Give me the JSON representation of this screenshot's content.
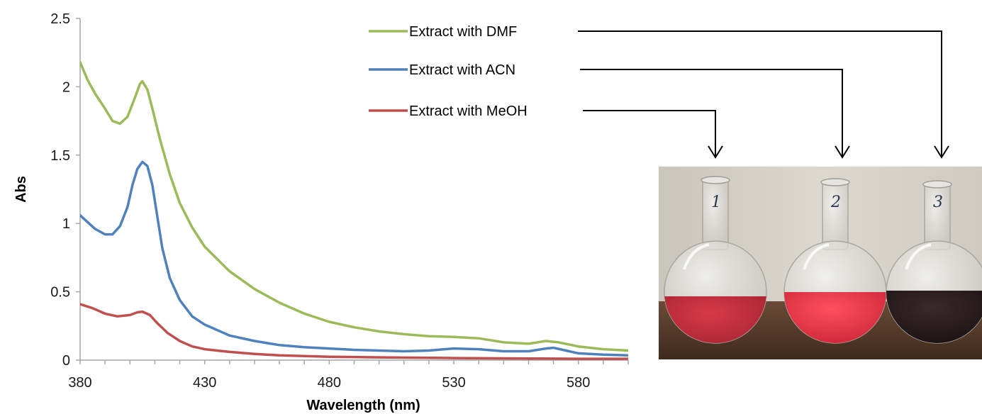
{
  "chart_data": {
    "type": "line",
    "xlabel": "Wavelength (nm)",
    "ylabel": "Abs",
    "xlim": [
      380,
      600
    ],
    "ylim": [
      0,
      2.5
    ],
    "x_ticks": [
      "380",
      "430",
      "480",
      "530",
      "580"
    ],
    "y_ticks": [
      "0",
      "0.5",
      "1",
      "1.5",
      "2",
      "2.5"
    ],
    "grid": false,
    "legend_position": "top-center",
    "series": [
      {
        "name": "Extract with DMF",
        "color": "#9bbb59",
        "points": [
          [
            380,
            2.18
          ],
          [
            383,
            2.05
          ],
          [
            386,
            1.95
          ],
          [
            390,
            1.84
          ],
          [
            393,
            1.75
          ],
          [
            396,
            1.73
          ],
          [
            399,
            1.78
          ],
          [
            402,
            1.92
          ],
          [
            404,
            2.02
          ],
          [
            405,
            2.04
          ],
          [
            407,
            1.98
          ],
          [
            409,
            1.84
          ],
          [
            412,
            1.62
          ],
          [
            416,
            1.36
          ],
          [
            420,
            1.15
          ],
          [
            425,
            0.97
          ],
          [
            430,
            0.83
          ],
          [
            440,
            0.65
          ],
          [
            450,
            0.52
          ],
          [
            460,
            0.42
          ],
          [
            470,
            0.34
          ],
          [
            480,
            0.28
          ],
          [
            490,
            0.24
          ],
          [
            500,
            0.21
          ],
          [
            510,
            0.19
          ],
          [
            520,
            0.175
          ],
          [
            530,
            0.17
          ],
          [
            540,
            0.16
          ],
          [
            550,
            0.13
          ],
          [
            560,
            0.12
          ],
          [
            567,
            0.14
          ],
          [
            572,
            0.13
          ],
          [
            580,
            0.1
          ],
          [
            590,
            0.08
          ],
          [
            600,
            0.07
          ]
        ]
      },
      {
        "name": "Extract with ACN",
        "color": "#4f81bd",
        "points": [
          [
            380,
            1.06
          ],
          [
            383,
            1.01
          ],
          [
            386,
            0.96
          ],
          [
            390,
            0.92
          ],
          [
            393,
            0.92
          ],
          [
            396,
            0.98
          ],
          [
            399,
            1.12
          ],
          [
            401,
            1.28
          ],
          [
            403,
            1.4
          ],
          [
            405,
            1.45
          ],
          [
            407,
            1.42
          ],
          [
            409,
            1.28
          ],
          [
            411,
            1.05
          ],
          [
            413,
            0.82
          ],
          [
            416,
            0.6
          ],
          [
            420,
            0.44
          ],
          [
            425,
            0.32
          ],
          [
            430,
            0.26
          ],
          [
            440,
            0.18
          ],
          [
            450,
            0.14
          ],
          [
            460,
            0.11
          ],
          [
            470,
            0.095
          ],
          [
            480,
            0.085
          ],
          [
            490,
            0.075
          ],
          [
            500,
            0.07
          ],
          [
            510,
            0.065
          ],
          [
            520,
            0.07
          ],
          [
            530,
            0.085
          ],
          [
            540,
            0.08
          ],
          [
            550,
            0.065
          ],
          [
            560,
            0.065
          ],
          [
            567,
            0.085
          ],
          [
            570,
            0.09
          ],
          [
            575,
            0.07
          ],
          [
            580,
            0.05
          ],
          [
            590,
            0.04
          ],
          [
            600,
            0.035
          ]
        ]
      },
      {
        "name": "Extract with MeOH",
        "color": "#c0504d",
        "points": [
          [
            380,
            0.41
          ],
          [
            385,
            0.38
          ],
          [
            390,
            0.34
          ],
          [
            395,
            0.32
          ],
          [
            400,
            0.33
          ],
          [
            403,
            0.35
          ],
          [
            405,
            0.355
          ],
          [
            408,
            0.33
          ],
          [
            411,
            0.27
          ],
          [
            415,
            0.2
          ],
          [
            420,
            0.14
          ],
          [
            425,
            0.1
          ],
          [
            430,
            0.08
          ],
          [
            440,
            0.06
          ],
          [
            450,
            0.045
          ],
          [
            460,
            0.035
          ],
          [
            480,
            0.025
          ],
          [
            500,
            0.02
          ],
          [
            530,
            0.015
          ],
          [
            560,
            0.012
          ],
          [
            580,
            0.01
          ],
          [
            600,
            0.01
          ]
        ]
      }
    ]
  },
  "photo": {
    "flask_labels": [
      "1",
      "2",
      "3"
    ]
  }
}
